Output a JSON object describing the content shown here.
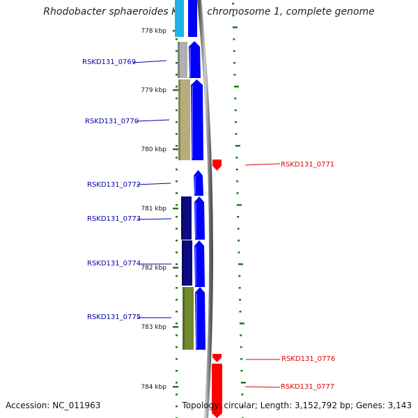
{
  "title": "Rhodobacter sphaeroides KD131 chromosome 1, complete genome",
  "accession_text": "Accession: NC_011963",
  "topology_text": "Topology: circular; Length: 3,152,792 bp; Genes: 3,143",
  "kbp_ticks": [
    "778 kbp",
    "779 kbp",
    "780 kbp",
    "781 kbp",
    "782 kbp",
    "783 kbp",
    "784 kbp"
  ],
  "genes": [
    {
      "id": "RSKD131_0769",
      "strand": "forward",
      "color": "#b0b0b0"
    },
    {
      "id": "RSKD131_0770",
      "strand": "forward",
      "color": "#b8ad7a"
    },
    {
      "id": "RSKD131_0771",
      "strand": "reverse",
      "color": "#ff0000"
    },
    {
      "id": "RSKD131_0772",
      "strand": "forward",
      "color": "#ffffff"
    },
    {
      "id": "RSKD131_0773",
      "strand": "forward",
      "color": "#0c0c80"
    },
    {
      "id": "RSKD131_0774",
      "strand": "forward",
      "color": "#0c0c80"
    },
    {
      "id": "RSKD131_0775",
      "strand": "forward",
      "color": "#6f8a2e"
    },
    {
      "id": "RSKD131_0776",
      "strand": "reverse",
      "color": "#ff0000"
    },
    {
      "id": "RSKD131_0777",
      "strand": "reverse",
      "color": "#ff0000"
    }
  ],
  "colors": {
    "forward_label": "#0000aa",
    "reverse_label": "#dd0000",
    "forward_arrow": "#0000ff",
    "reverse_arrow": "#ff0000",
    "tick": "#1a7a1a"
  }
}
